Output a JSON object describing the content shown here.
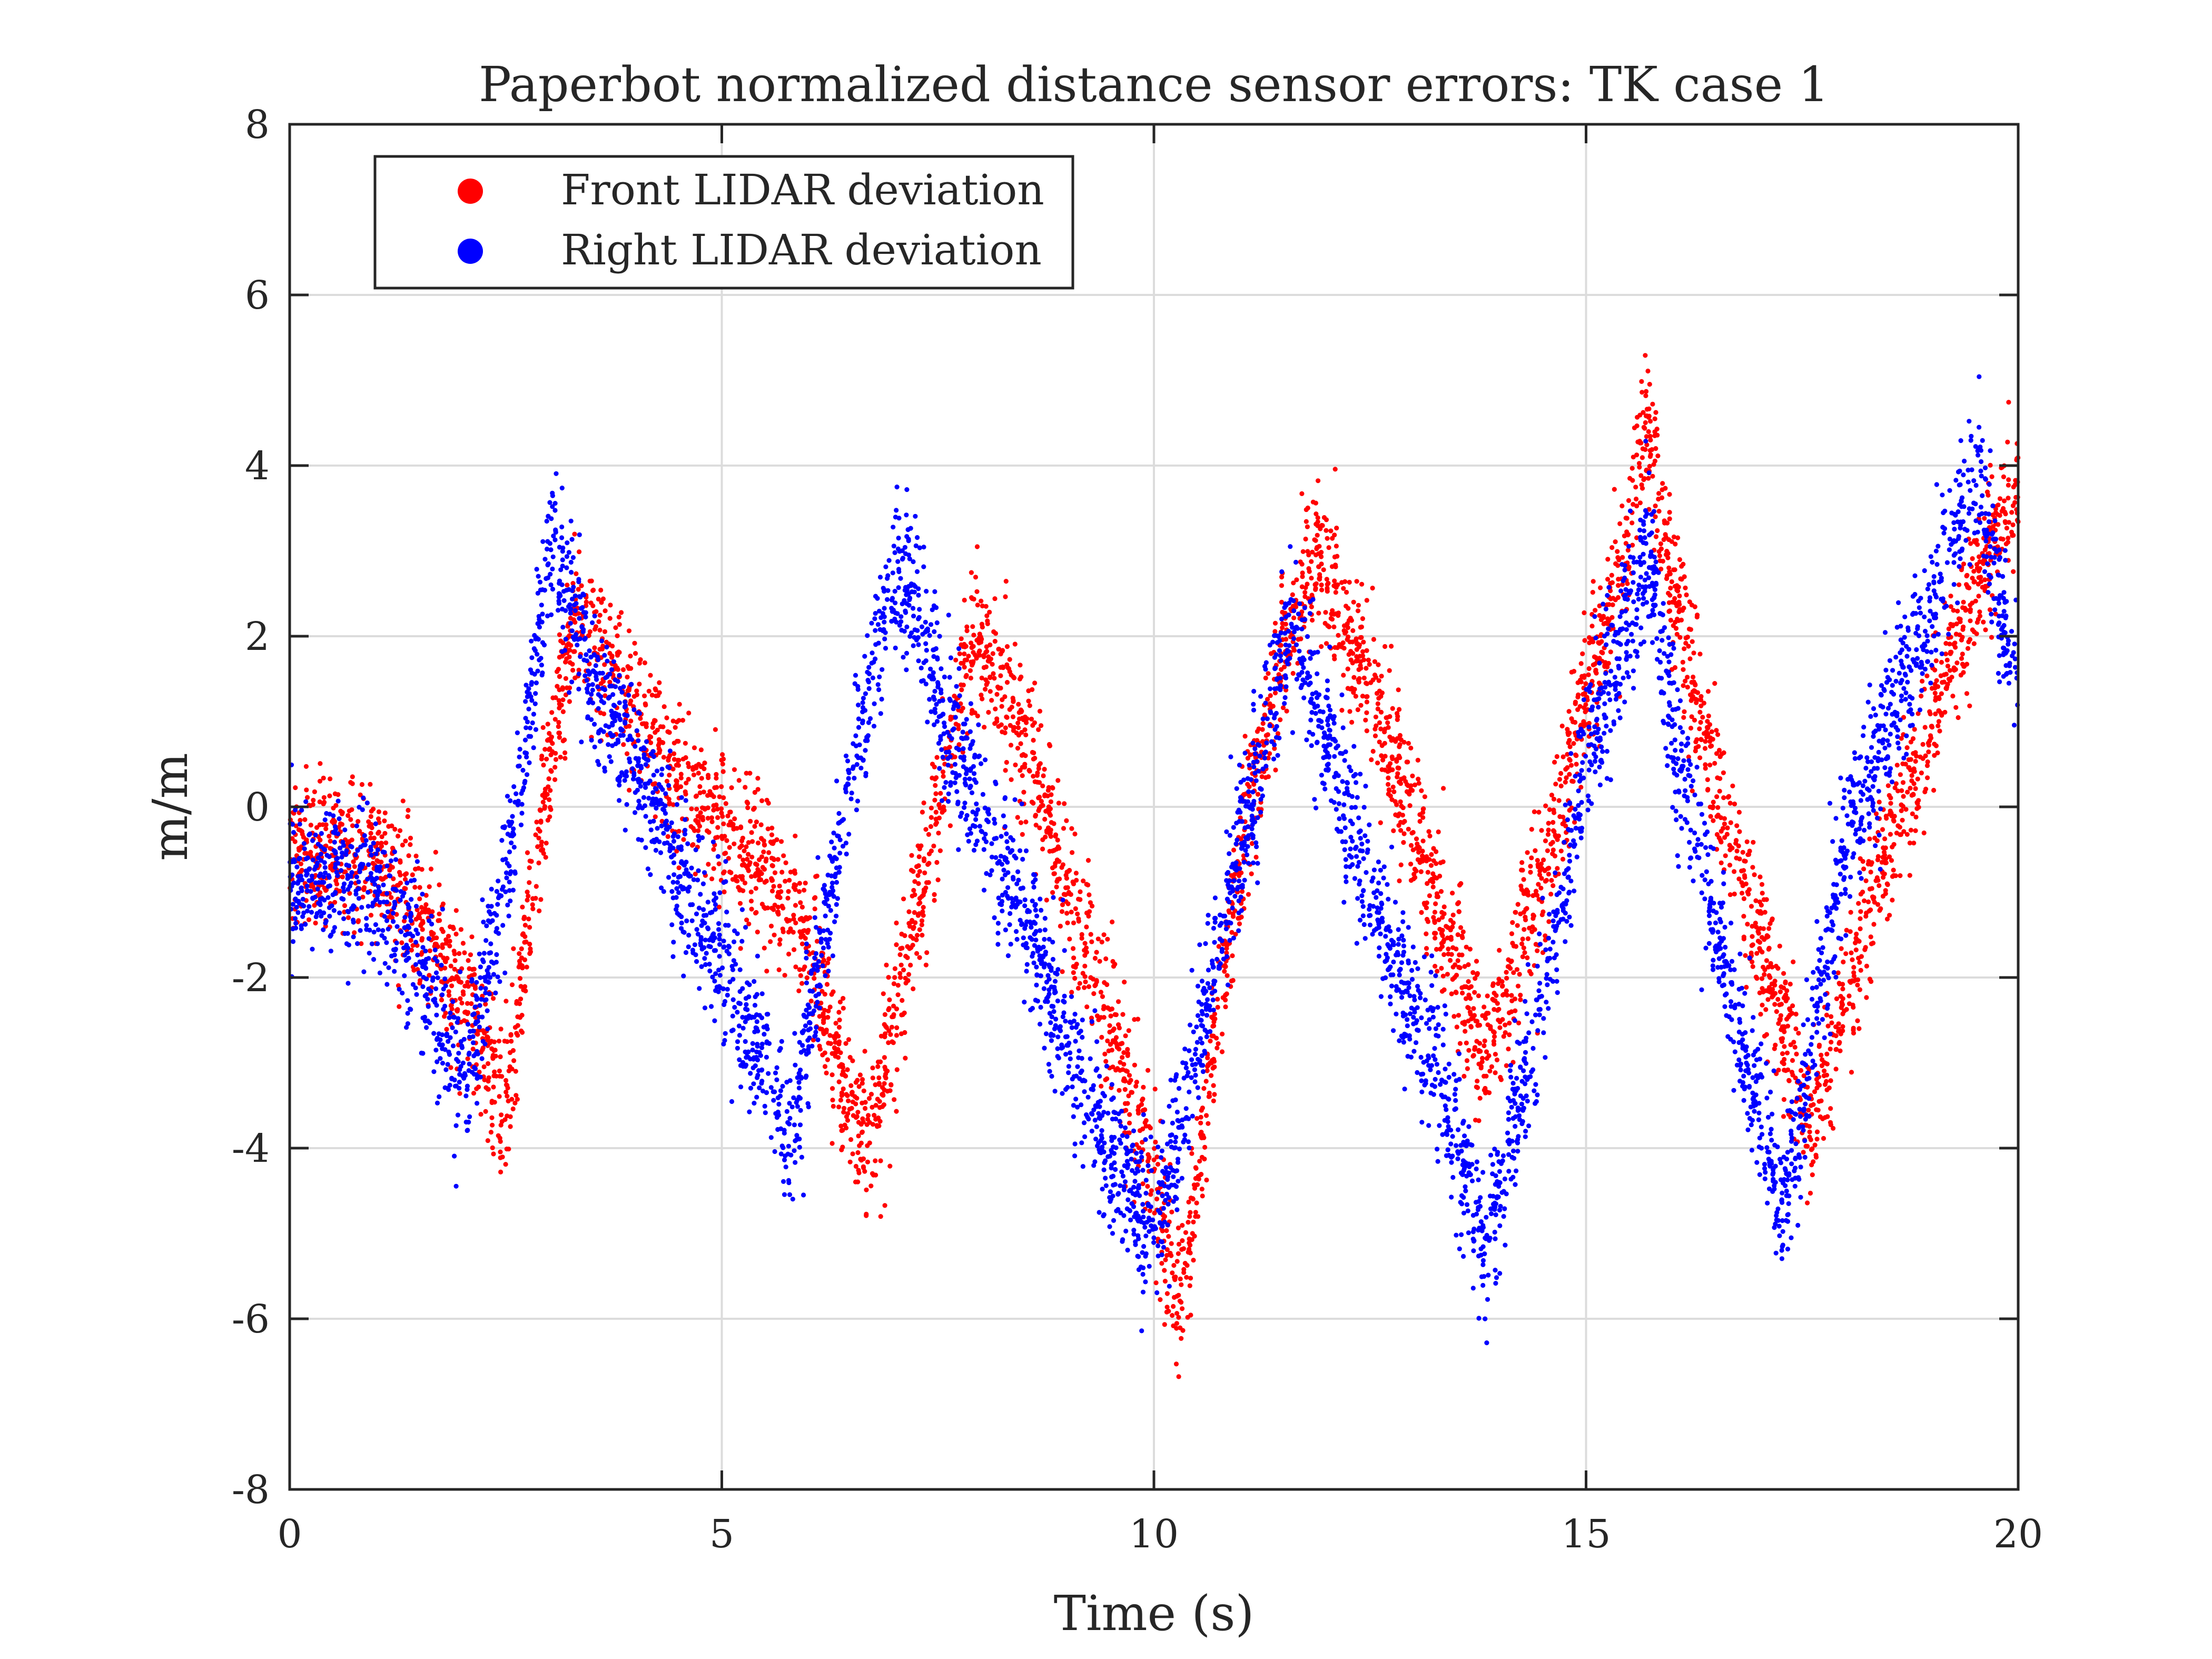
{
  "chart_data": {
    "type": "scatter",
    "title": "Paperbot normalized distance sensor errors: TK case 1",
    "xlabel": "Time (s)",
    "ylabel": "m/m",
    "xlim": [
      0,
      20
    ],
    "ylim": [
      -8,
      8
    ],
    "xticks": [
      0,
      5,
      10,
      15,
      20
    ],
    "yticks": [
      -8,
      -6,
      -4,
      -2,
      0,
      2,
      4,
      6,
      8
    ],
    "grid": true,
    "legend_position": "top-left",
    "series": [
      {
        "name": "Front LIDAR deviation",
        "color": "#ff0000",
        "trend": {
          "x": [
            0,
            0.5,
            1.0,
            1.5,
            2.0,
            2.5,
            3.0,
            3.3,
            3.5,
            4.0,
            4.5,
            5.0,
            5.5,
            6.0,
            6.3,
            6.7,
            7.0,
            7.5,
            7.9,
            8.3,
            8.6,
            9.0,
            9.5,
            10.0,
            10.3,
            10.6,
            11.0,
            11.5,
            11.9,
            12.2,
            12.5,
            13.0,
            13.5,
            13.8,
            14.0,
            14.5,
            15.0,
            15.5,
            15.7,
            16.0,
            16.5,
            17.0,
            17.6,
            18.0,
            18.5,
            19.0,
            19.5,
            20.0
          ],
          "y": [
            -0.5,
            -0.6,
            -0.7,
            -1.3,
            -2.2,
            -3.5,
            0.5,
            2.2,
            2.0,
            1.2,
            0.3,
            -0.2,
            -0.8,
            -1.6,
            -2.8,
            -4.0,
            -2.5,
            0.0,
            2.0,
            1.3,
            0.5,
            -1.0,
            -2.5,
            -4.4,
            -5.9,
            -3.5,
            -0.5,
            1.8,
            3.0,
            2.2,
            1.4,
            -0.2,
            -1.8,
            -3.0,
            -2.5,
            -0.8,
            1.2,
            3.3,
            4.6,
            2.5,
            0.3,
            -1.5,
            -3.8,
            -2.2,
            -0.5,
            1.0,
            2.6,
            3.8
          ]
        },
        "spread": 0.45,
        "points_per_second": 250,
        "seed": 17
      },
      {
        "name": "Right LIDAR deviation",
        "color": "#0000ff",
        "trend": {
          "x": [
            0,
            0.5,
            1.0,
            1.5,
            2.0,
            2.5,
            3.0,
            3.3,
            3.5,
            4.0,
            4.5,
            5.0,
            5.5,
            5.8,
            6.0,
            6.5,
            7.0,
            7.3,
            7.6,
            8.0,
            8.5,
            9.0,
            9.5,
            10.0,
            10.4,
            11.0,
            11.6,
            12.0,
            12.5,
            13.0,
            13.5,
            13.8,
            14.0,
            14.5,
            15.0,
            15.5,
            15.7,
            16.0,
            16.5,
            17.0,
            17.3,
            17.7,
            18.0,
            18.5,
            19.0,
            19.5,
            20.0
          ],
          "y": [
            -0.8,
            -0.8,
            -1.0,
            -1.8,
            -3.2,
            -1.0,
            3.0,
            2.4,
            1.5,
            0.5,
            -0.8,
            -1.8,
            -3.0,
            -4.0,
            -2.5,
            0.5,
            2.7,
            2.3,
            1.0,
            0.0,
            -1.2,
            -2.8,
            -4.0,
            -5.0,
            -3.2,
            -0.5,
            2.2,
            0.8,
            -1.0,
            -2.4,
            -3.8,
            -5.2,
            -4.5,
            -2.2,
            0.5,
            2.2,
            3.0,
            1.0,
            -1.5,
            -3.5,
            -4.8,
            -2.2,
            -0.5,
            1.0,
            2.4,
            4.0,
            1.2
          ]
        },
        "spread": 0.45,
        "points_per_second": 250,
        "seed": 29
      }
    ]
  }
}
